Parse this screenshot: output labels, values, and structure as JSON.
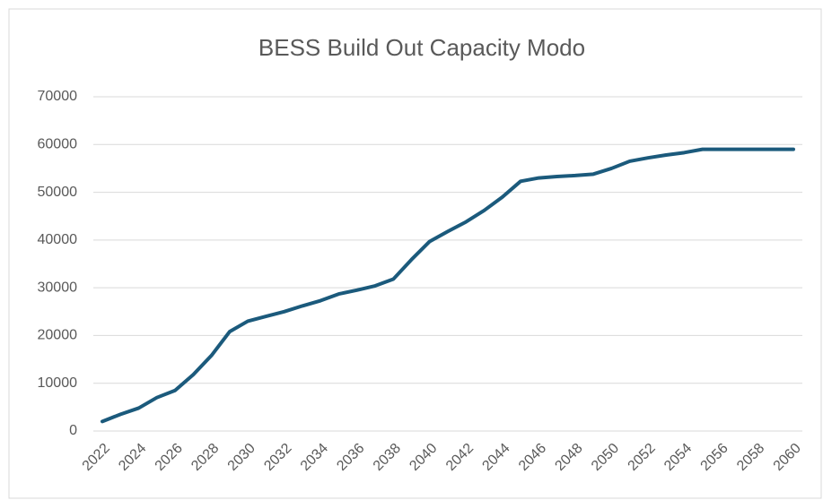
{
  "chart_data": {
    "type": "line",
    "title": "BESS Build Out Capacity Modo",
    "categories": [
      "2022",
      null,
      "2024",
      null,
      "2026",
      null,
      "2028",
      null,
      "2030",
      null,
      "2032",
      null,
      "2034",
      null,
      "2036",
      null,
      "2038",
      null,
      "2040",
      null,
      "2042",
      null,
      "2044",
      null,
      "2046",
      null,
      "2048",
      null,
      "2050",
      null,
      "2052",
      null,
      "2054",
      null,
      "2056",
      null,
      "2058",
      null,
      "2060"
    ],
    "values": [
      2000,
      3500,
      4800,
      7000,
      8500,
      11800,
      15800,
      20800,
      23000,
      24000,
      25000,
      26200,
      27300,
      28700,
      29500,
      30400,
      31800,
      35900,
      39700,
      41800,
      43800,
      46200,
      49000,
      52300,
      53000,
      53300,
      53500,
      53800,
      55000,
      56500,
      57200,
      57800,
      58300,
      59000,
      59000,
      59000,
      59000,
      59000,
      59000
    ],
    "color": "#1b5a7c",
    "ylim": [
      0,
      70000
    ],
    "yticks": [
      0,
      10000,
      20000,
      30000,
      40000,
      50000,
      60000,
      70000
    ],
    "grid": true
  }
}
